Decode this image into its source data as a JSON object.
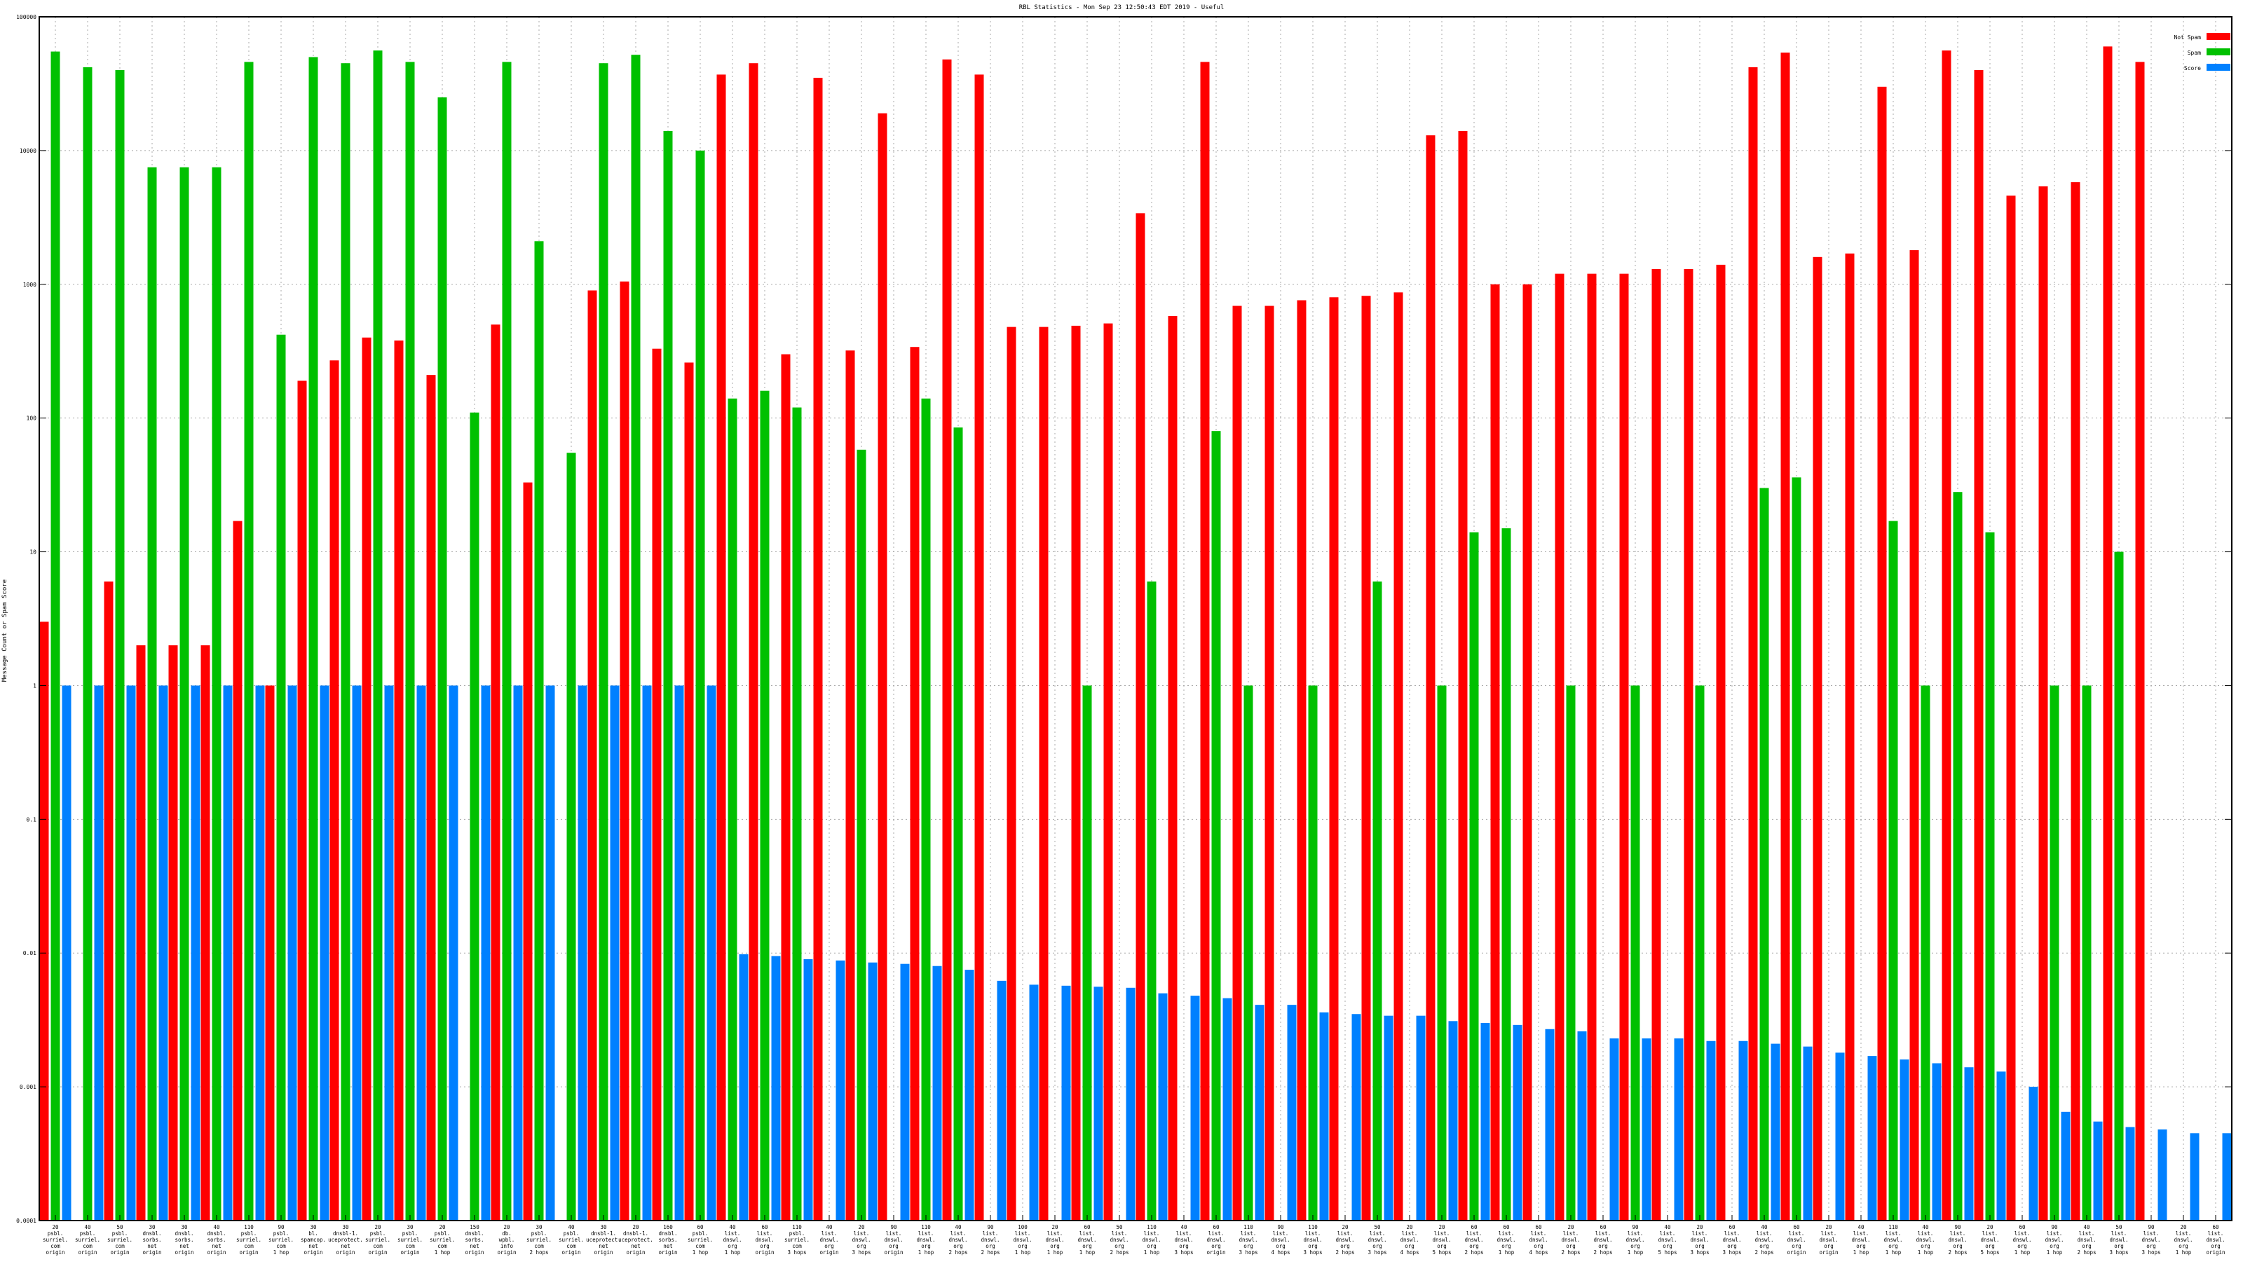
{
  "chart_data": {
    "type": "bar",
    "title": "RBL Statistics - Mon Sep 23 12:50:43 EDT 2019 - Useful",
    "xlabel": "",
    "ylabel": "Message Count or Spam Score",
    "yscale": "log",
    "ylim": [
      0.0001,
      100000
    ],
    "yticks": [
      "0.0001",
      "0.001",
      "0.01",
      "0.1",
      "1",
      "10",
      "100",
      "1000",
      "10000",
      "100000"
    ],
    "grid": true,
    "legend_position": "top-right",
    "colors": {
      "Not Spam": "#ff0000",
      "Spam": "#00c000",
      "Score": "#0080ff"
    },
    "categories": [
      [
        "20",
        "psbl.",
        "surriel.",
        "com",
        "origin"
      ],
      [
        "40",
        "psbl.",
        "surriel.",
        "com",
        "origin"
      ],
      [
        "50",
        "psbl.",
        "surriel.",
        "com",
        "origin"
      ],
      [
        "30",
        "dnsbl.",
        "sorbs.",
        "net",
        "origin"
      ],
      [
        "30",
        "dnsbl.",
        "sorbs.",
        "net",
        "origin"
      ],
      [
        "40",
        "dnsbl.",
        "sorbs.",
        "net",
        "origin"
      ],
      [
        "110",
        "psbl.",
        "surriel.",
        "com",
        "origin"
      ],
      [
        "90",
        "psbl.",
        "surriel.",
        "com",
        "1 hop"
      ],
      [
        "30",
        "bl.",
        "spamcop.",
        "net",
        "origin"
      ],
      [
        "30",
        "dnsbl-1.",
        "uceprotect.",
        "net",
        "origin"
      ],
      [
        "20",
        "psbl.",
        "surriel.",
        "com",
        "origin"
      ],
      [
        "30",
        "psbl.",
        "surriel.",
        "com",
        "origin"
      ],
      [
        "20",
        "psbl.",
        "surriel.",
        "com",
        "1 hop"
      ],
      [
        "150",
        "dnsbl.",
        "sorbs.",
        "net",
        "origin"
      ],
      [
        "20",
        "db.",
        "wpbl.",
        "info",
        "origin"
      ],
      [
        "30",
        "psbl.",
        "surriel.",
        "com",
        "2 hops"
      ],
      [
        "40",
        "psbl.",
        "surriel.",
        "com",
        "origin"
      ],
      [
        "30",
        "dnsbl-1.",
        "uceprotect.",
        "net",
        "origin"
      ],
      [
        "20",
        "dnsbl-1.",
        "uceprotect.",
        "net",
        "origin"
      ],
      [
        "160",
        "dnsbl.",
        "sorbs.",
        "net",
        "origin"
      ],
      [
        "60",
        "psbl.",
        "surriel.",
        "com",
        "1 hop"
      ],
      [
        "40",
        "list.",
        "dnswl.",
        "org",
        "1 hop"
      ],
      [
        "60",
        "list.",
        "dnswl.",
        "org",
        "origin"
      ],
      [
        "110",
        "psbl.",
        "surriel.",
        "com",
        "3 hops"
      ],
      [
        "40",
        "list.",
        "dnswl.",
        "org",
        "origin"
      ],
      [
        "20",
        "list.",
        "dnswl.",
        "org",
        "3 hops"
      ],
      [
        "90",
        "list.",
        "dnswl.",
        "org",
        "origin"
      ],
      [
        "110",
        "list.",
        "dnswl.",
        "org",
        "1 hop"
      ],
      [
        "40",
        "list.",
        "dnswl.",
        "org",
        "2 hops"
      ],
      [
        "90",
        "list.",
        "dnswl.",
        "org",
        "2 hops"
      ],
      [
        "100",
        "list.",
        "dnswl.",
        "org",
        "1 hop"
      ],
      [
        "20",
        "list.",
        "dnswl.",
        "org",
        "1 hop"
      ],
      [
        "60",
        "list.",
        "dnswl.",
        "org",
        "1 hop"
      ],
      [
        "50",
        "list.",
        "dnswl.",
        "org",
        "2 hops"
      ],
      [
        "110",
        "list.",
        "dnswl.",
        "org",
        "1 hop"
      ],
      [
        "40",
        "list.",
        "dnswl.",
        "org",
        "3 hops"
      ],
      [
        "60",
        "list.",
        "dnswl.",
        "org",
        "origin"
      ],
      [
        "110",
        "list.",
        "dnswl.",
        "org",
        "3 hops"
      ],
      [
        "90",
        "list.",
        "dnswl.",
        "org",
        "4 hops"
      ],
      [
        "110",
        "list.",
        "dnswl.",
        "org",
        "3 hops"
      ],
      [
        "20",
        "list.",
        "dnswl.",
        "org",
        "2 hops"
      ],
      [
        "50",
        "list.",
        "dnswl.",
        "org",
        "3 hops"
      ],
      [
        "20",
        "list.",
        "dnswl.",
        "org",
        "4 hops"
      ],
      [
        "20",
        "list.",
        "dnswl.",
        "org",
        "5 hops"
      ],
      [
        "60",
        "list.",
        "dnswl.",
        "org",
        "2 hops"
      ],
      [
        "60",
        "list.",
        "dnswl.",
        "org",
        "1 hop"
      ],
      [
        "60",
        "list.",
        "dnswl.",
        "org",
        "4 hops"
      ],
      [
        "20",
        "list.",
        "dnswl.",
        "org",
        "2 hops"
      ],
      [
        "60",
        "list.",
        "dnswl.",
        "org",
        "2 hops"
      ],
      [
        "90",
        "list.",
        "dnswl.",
        "org",
        "1 hop"
      ],
      [
        "40",
        "list.",
        "dnswl.",
        "org",
        "5 hops"
      ],
      [
        "20",
        "list.",
        "dnswl.",
        "org",
        "3 hops"
      ],
      [
        "60",
        "list.",
        "dnswl.",
        "org",
        "3 hops"
      ],
      [
        "40",
        "list.",
        "dnswl.",
        "org",
        "2 hops"
      ],
      [
        "60",
        "list.",
        "dnswl.",
        "org",
        "origin"
      ],
      [
        "20",
        "list.",
        "dnswl.",
        "org",
        "origin"
      ],
      [
        "40",
        "list.",
        "dnswl.",
        "org",
        "1 hop"
      ],
      [
        "110",
        "list.",
        "dnswl.",
        "org",
        "1 hop"
      ],
      [
        "40",
        "list.",
        "dnswl.",
        "org",
        "1 hop"
      ],
      [
        "90",
        "list.",
        "dnswl.",
        "org",
        "2 hops"
      ],
      [
        "20",
        "list.",
        "dnswl.",
        "org",
        "5 hops"
      ],
      [
        "60",
        "list.",
        "dnswl.",
        "org",
        "1 hop"
      ],
      [
        "90",
        "list.",
        "dnswl.",
        "org",
        "1 hop"
      ],
      [
        "40",
        "list.",
        "dnswl.",
        "org",
        "2 hops"
      ],
      [
        "50",
        "list.",
        "dnswl.",
        "org",
        "3 hops"
      ],
      [
        "90",
        "list.",
        "dnswl.",
        "org",
        "3 hops"
      ],
      [
        "20",
        "list.",
        "dnswl.",
        "org",
        "1 hop"
      ],
      [
        "60",
        "list.",
        "dnswl.",
        "org",
        "origin"
      ]
    ],
    "series": [
      {
        "name": "Not Spam",
        "values": [
          3,
          0,
          6,
          2,
          2,
          2,
          17,
          1,
          190,
          270,
          400,
          380,
          210,
          0,
          500,
          33,
          0,
          900,
          1050,
          330,
          260,
          37000,
          45000,
          300,
          35000,
          320,
          19000,
          340,
          48000,
          37000,
          480,
          480,
          490,
          510,
          3400,
          580,
          46000,
          690,
          690,
          760,
          800,
          820,
          870,
          13000,
          14000,
          1000,
          1000,
          1200,
          1200,
          1200,
          1300,
          1300,
          1400,
          42000,
          54000,
          1600,
          1700,
          30000,
          1800,
          56000,
          40000,
          4600,
          5400,
          5800,
          60000,
          46000,
          0,
          0
        ]
      },
      {
        "name": "Spam",
        "values": [
          55000,
          42000,
          40000,
          7500,
          7500,
          7500,
          46000,
          420,
          50000,
          45000,
          56000,
          46000,
          25000,
          110,
          46000,
          2100,
          55,
          45000,
          52000,
          14000,
          10000,
          140,
          160,
          120,
          0,
          58,
          0,
          140,
          85,
          0,
          0,
          0,
          1,
          0,
          6,
          0,
          80,
          1,
          0,
          1,
          0,
          6,
          0,
          1,
          14,
          15,
          0,
          1,
          0,
          1,
          0,
          1,
          0,
          30,
          36,
          0,
          0,
          17,
          1,
          28,
          14,
          0,
          1,
          1,
          10,
          0,
          0,
          0
        ]
      },
      {
        "name": "Score",
        "values": [
          1,
          1,
          1,
          1,
          1,
          1,
          1,
          1,
          1,
          1,
          1,
          1,
          1,
          1,
          1,
          1,
          1,
          1,
          1,
          1,
          1,
          0.0098,
          0.0095,
          0.009,
          0.0088,
          0.0085,
          0.0083,
          0.008,
          0.0075,
          0.0062,
          0.0058,
          0.0057,
          0.0056,
          0.0055,
          0.005,
          0.0048,
          0.0046,
          0.0041,
          0.0041,
          0.0036,
          0.0035,
          0.0034,
          0.0034,
          0.0031,
          0.003,
          0.0029,
          0.0027,
          0.0026,
          0.0023,
          0.0023,
          0.0023,
          0.0022,
          0.0022,
          0.0021,
          0.002,
          0.0018,
          0.0017,
          0.0016,
          0.0015,
          0.0014,
          0.0013,
          0.001,
          0.00065,
          0.00055,
          0.0005,
          0.00048,
          0.00045,
          0.00045
        ]
      }
    ]
  }
}
